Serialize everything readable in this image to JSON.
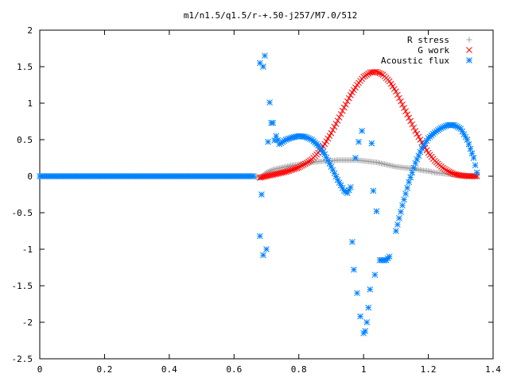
{
  "chart_data": {
    "type": "scatter",
    "title": "m1/n1.5/q1.5/r-+.50-j257/M7.0/512",
    "xlabel": "",
    "ylabel": "",
    "xlim": [
      0,
      1.4
    ],
    "ylim": [
      -2.5,
      2
    ],
    "x_ticks": [
      "0",
      "0.2",
      "0.4",
      "0.6",
      "0.8",
      "1",
      "1.2",
      "1.4"
    ],
    "y_ticks": [
      "2",
      "1.5",
      "1",
      "0.5",
      "0",
      "-0.5",
      "-1",
      "-1.5",
      "-2",
      "-2.5"
    ],
    "x_tick_values": [
      0,
      0.2,
      0.4,
      0.6,
      0.8,
      1,
      1.2,
      1.4
    ],
    "y_tick_values": [
      2,
      1.5,
      1,
      0.5,
      0,
      -0.5,
      -1,
      -1.5,
      -2,
      -2.5
    ],
    "grid": false,
    "legend_position": "top-right",
    "series": [
      {
        "name": "R stress",
        "marker": "plus",
        "color": "#a0a0a0",
        "x": [
          0.0,
          0.1,
          0.2,
          0.3,
          0.4,
          0.5,
          0.6,
          0.66,
          0.68,
          0.7,
          0.72,
          0.74,
          0.76,
          0.78,
          0.8,
          0.82,
          0.84,
          0.86,
          0.88,
          0.9,
          0.92,
          0.94,
          0.96,
          0.98,
          1.0,
          1.02,
          1.04,
          1.06,
          1.08,
          1.1,
          1.12,
          1.14,
          1.16,
          1.18,
          1.2,
          1.22,
          1.24,
          1.26,
          1.28,
          1.3,
          1.32,
          1.34,
          1.35
        ],
        "y": [
          0,
          0,
          0,
          0,
          0,
          0,
          0,
          0,
          -0.02,
          0.05,
          0.09,
          0.11,
          0.13,
          0.15,
          0.16,
          0.18,
          0.19,
          0.2,
          0.21,
          0.21,
          0.22,
          0.22,
          0.22,
          0.22,
          0.21,
          0.2,
          0.19,
          0.17,
          0.15,
          0.13,
          0.12,
          0.11,
          0.1,
          0.08,
          0.07,
          0.05,
          0.04,
          0.03,
          0.02,
          0.01,
          0.01,
          0.0,
          0.0
        ]
      },
      {
        "name": "G work",
        "marker": "cross",
        "color": "#ff0000",
        "x": [
          0.68,
          0.7,
          0.72,
          0.74,
          0.76,
          0.78,
          0.8,
          0.82,
          0.84,
          0.86,
          0.88,
          0.9,
          0.92,
          0.94,
          0.96,
          0.98,
          1.0,
          1.02,
          1.04,
          1.06,
          1.08,
          1.1,
          1.12,
          1.14,
          1.16,
          1.18,
          1.2,
          1.22,
          1.24,
          1.26,
          1.28,
          1.3,
          1.32,
          1.34,
          1.35
        ],
        "y": [
          -0.02,
          0.0,
          0.02,
          0.04,
          0.06,
          0.09,
          0.12,
          0.17,
          0.23,
          0.32,
          0.44,
          0.59,
          0.76,
          0.94,
          1.11,
          1.25,
          1.36,
          1.42,
          1.43,
          1.39,
          1.3,
          1.16,
          0.98,
          0.8,
          0.62,
          0.46,
          0.32,
          0.21,
          0.13,
          0.07,
          0.03,
          0.01,
          0.0,
          0.0,
          0.0
        ]
      },
      {
        "name": "Acoustic flux",
        "marker": "star",
        "color": "#0080ff",
        "x": [
          0.0,
          0.1,
          0.2,
          0.3,
          0.4,
          0.5,
          0.6,
          0.66,
          0.68,
          0.68,
          0.685,
          0.69,
          0.69,
          0.695,
          0.7,
          0.705,
          0.71,
          0.715,
          0.72,
          0.725,
          0.73,
          0.74,
          0.75,
          0.76,
          0.78,
          0.8,
          0.82,
          0.84,
          0.86,
          0.88,
          0.9,
          0.92,
          0.94,
          0.95,
          0.96,
          0.965,
          0.97,
          0.975,
          0.98,
          0.985,
          0.99,
          0.995,
          1.0,
          1.005,
          1.01,
          1.015,
          1.02,
          1.025,
          1.03,
          1.035,
          1.04,
          1.05,
          1.06,
          1.07,
          1.08,
          1.1,
          1.12,
          1.14,
          1.16,
          1.18,
          1.2,
          1.22,
          1.24,
          1.26,
          1.28,
          1.3,
          1.32,
          1.34,
          1.35
        ],
        "y": [
          0,
          0,
          0,
          0,
          0,
          0,
          0,
          0,
          1.55,
          -0.82,
          -0.25,
          1.5,
          -1.08,
          1.65,
          -1.0,
          0.47,
          1.01,
          0.73,
          0.73,
          0.49,
          0.55,
          0.44,
          0.47,
          0.5,
          0.53,
          0.55,
          0.54,
          0.5,
          0.42,
          0.3,
          0.13,
          -0.05,
          -0.2,
          -0.23,
          -0.15,
          -0.9,
          -1.28,
          0.25,
          -1.6,
          0.47,
          -1.92,
          0.62,
          -2.15,
          -2.12,
          -2.0,
          -1.8,
          -1.55,
          0.45,
          -0.2,
          -1.35,
          -0.48,
          -1.15,
          -1.15,
          -1.15,
          -1.1,
          -0.75,
          -0.4,
          -0.08,
          0.18,
          0.38,
          0.52,
          0.6,
          0.66,
          0.7,
          0.7,
          0.65,
          0.5,
          0.25,
          0.05
        ]
      }
    ]
  }
}
